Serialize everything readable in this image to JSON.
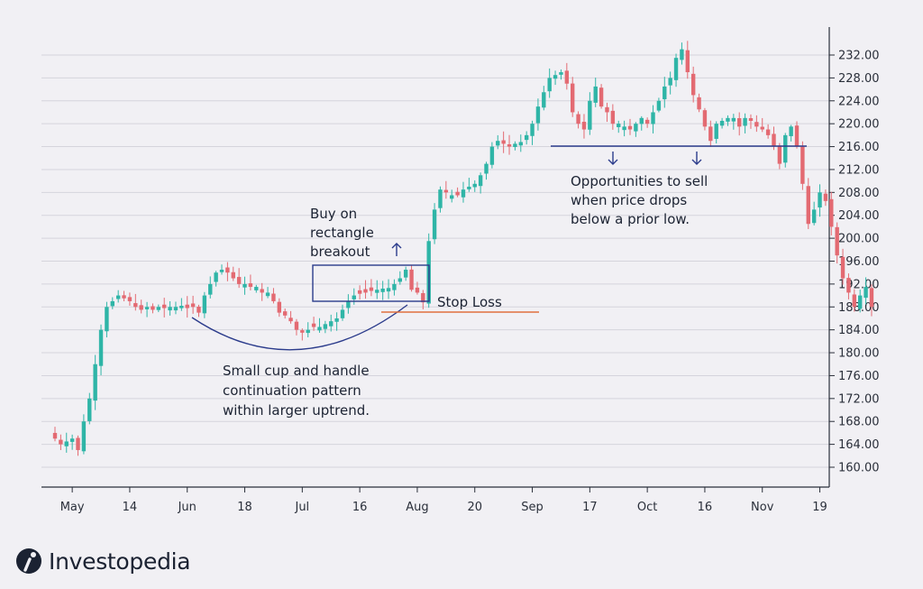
{
  "brand": {
    "name": "Investopedia",
    "logo_icon": "investopedia-logo-icon"
  },
  "colors": {
    "up": "#2fb5a7",
    "down": "#e36a72",
    "annotation": "#2c3c8c",
    "stop_loss": "#e0713f",
    "grid": "#d5d4dc",
    "background": "#f1f0f4"
  },
  "chart_data": {
    "type": "candlestick",
    "title": "",
    "xlabel": "",
    "ylabel": "",
    "ylim": [
      156,
      236
    ],
    "y_axis_position": "right",
    "grid": true,
    "yticks": [
      "160.00",
      "164.00",
      "168.00",
      "172.00",
      "176.00",
      "180.00",
      "184.00",
      "188.00",
      "192.00",
      "196.00",
      "200.00",
      "204.00",
      "208.00",
      "212.00",
      "216.00",
      "220.00",
      "224.00",
      "228.00",
      "232.00"
    ],
    "xticks": [
      {
        "label": "May",
        "index": 3
      },
      {
        "label": "14",
        "index": 13
      },
      {
        "label": "Jun",
        "index": 23
      },
      {
        "label": "18",
        "index": 33
      },
      {
        "label": "Jul",
        "index": 43
      },
      {
        "label": "16",
        "index": 53
      },
      {
        "label": "Aug",
        "index": 63
      },
      {
        "label": "20",
        "index": 73
      },
      {
        "label": "Sep",
        "index": 83
      },
      {
        "label": "17",
        "index": 93
      },
      {
        "label": "Oct",
        "index": 103
      },
      {
        "label": "16",
        "index": 113
      },
      {
        "label": "Nov",
        "index": 123
      },
      {
        "label": "19",
        "index": 133
      }
    ],
    "close_path": [
      165,
      164,
      164.5,
      165,
      163,
      168,
      172,
      178,
      184,
      188,
      189,
      190,
      189.5,
      189,
      188,
      187.5,
      188,
      187.5,
      188,
      187.8,
      188,
      188,
      188.2,
      187.8,
      188,
      187,
      190,
      192,
      194,
      194.5,
      194,
      193,
      192,
      192,
      191.5,
      191.5,
      190.5,
      190.5,
      189,
      187,
      186.5,
      185.5,
      184,
      183.5,
      184,
      184.5,
      184.5,
      185,
      185.5,
      186,
      187.5,
      189,
      190,
      190.3,
      190.5,
      190.8,
      191,
      191.2,
      191.3,
      192,
      193,
      194.5,
      191,
      190.5,
      188.8,
      199.5,
      205,
      208.5,
      208,
      207.5,
      207.5,
      208.5,
      209,
      209.5,
      211,
      213,
      216,
      217,
      216.5,
      216,
      216.5,
      216.8,
      218,
      220,
      223,
      225.5,
      228,
      228.5,
      229,
      227,
      222,
      220,
      219,
      224,
      226.5,
      223,
      222,
      220,
      220,
      219.5,
      219,
      220,
      221,
      220,
      222,
      224,
      226.5,
      228,
      231.5,
      233,
      229,
      225,
      222.5,
      219.5,
      217,
      220,
      220.5,
      221,
      221,
      219.5,
      221,
      220.5,
      219.5,
      219,
      218,
      216,
      213,
      218,
      219.5,
      216,
      209.5,
      202.5,
      205,
      208,
      206.5,
      202,
      197,
      193,
      190.5,
      188,
      190,
      191.5,
      188
    ],
    "annotations": [
      {
        "id": "breakout",
        "text": [
          "Buy on",
          "rectangle",
          "breakout"
        ]
      },
      {
        "id": "stop-loss",
        "text": [
          "Stop Loss"
        ],
        "price": 187.2
      },
      {
        "id": "cup",
        "text": [
          "Small cup and handle",
          "continuation pattern",
          "within larger uptrend."
        ]
      },
      {
        "id": "sell",
        "text": [
          "Opportunities to sell",
          "when price drops",
          "below a prior low."
        ],
        "price": 216
      }
    ],
    "rectangle": {
      "price_low": 189,
      "price_high": 195.3,
      "index_start": 52,
      "index_end": 66
    }
  }
}
